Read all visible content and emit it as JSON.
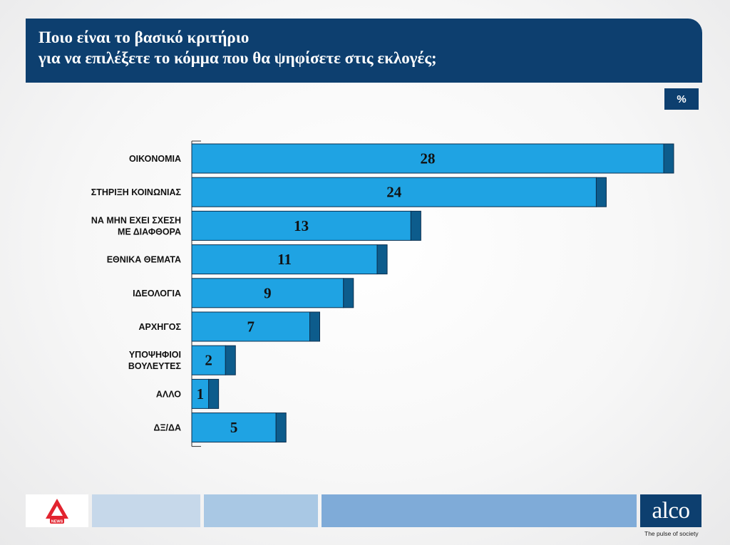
{
  "header": {
    "line1": "Ποιο είναι το βασικό κριτήριο",
    "line2": "για να επιλέξετε το κόμμα που θα ψηφίσετε στις εκλογές;"
  },
  "unit": "%",
  "chart_data": {
    "type": "bar",
    "orientation": "horizontal",
    "categories": [
      [
        "ΟΙΚΟΝΟΜΙΑ"
      ],
      [
        "ΣΤΗΡΙΞΗ ΚΟΙΝΩΝΙΑΣ"
      ],
      [
        "ΝΑ ΜΗΝ ΕΧΕΙ ΣΧΕΣΗ",
        "ΜΕ ΔΙΑΦΘΟΡΑ"
      ],
      [
        "ΕΘΝΙΚΑ ΘΕΜΑΤΑ"
      ],
      [
        "ΙΔΕΟΛΟΓΙΑ"
      ],
      [
        "ΑΡΧΗΓΟΣ"
      ],
      [
        "ΥΠΟΨΗΦΙΟΙ",
        "ΒΟΥΛΕΥΤΕΣ"
      ],
      [
        "ΑΛΛΟ"
      ],
      [
        "ΔΞ/ΔΑ"
      ]
    ],
    "values": [
      28,
      24,
      13,
      11,
      9,
      7,
      2,
      1,
      5
    ],
    "unit": "%",
    "xlim": [
      0,
      28
    ],
    "grid": false,
    "colors": {
      "bar": "#1fa3e3",
      "bar_side": "#0d5c8c",
      "bar_outline": "#0b2f4f"
    }
  },
  "footer": {
    "logo_left": "NEWS",
    "brand": "alco",
    "tagline": "The pulse of society",
    "strip_colors": [
      "#c6d8ea",
      "#a9c8e4",
      "#7fabd8"
    ]
  }
}
